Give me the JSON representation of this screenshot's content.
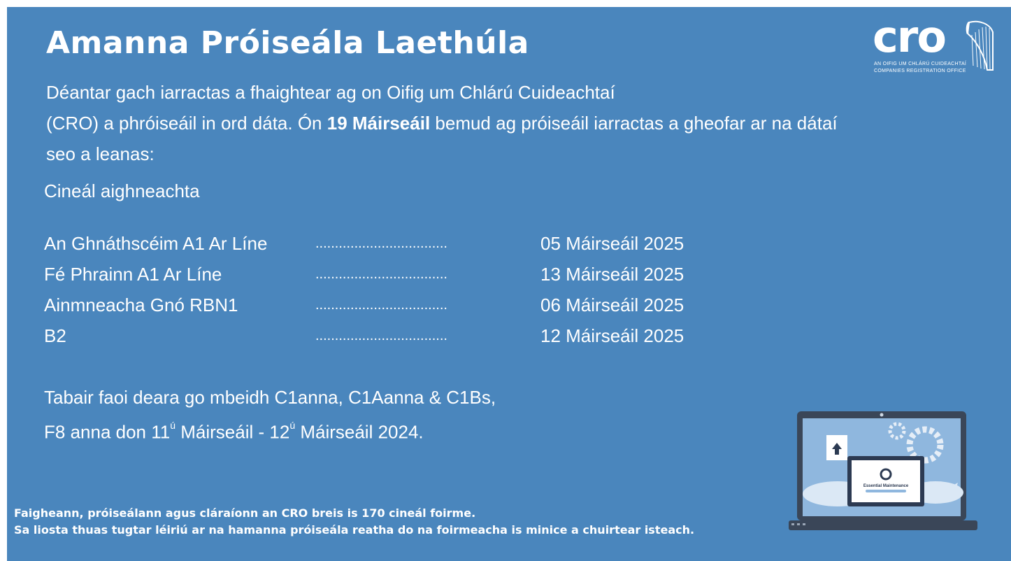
{
  "title": "Amanna Próiseála Laethúla",
  "intro": {
    "text1": "Déantar gach iarractas a fhaightear ag on Oifig um Chlárú Cuideachtaí",
    "text2_pre": "(CRO) a phróiseáil in ord dáta. Ón ",
    "text2_bold": "19 Máirseáil",
    "text2_post": " bemud ag próiseáil iarractas a gheofar ar na dátaí",
    "text3": "seo a leanas:"
  },
  "type_heading": "Cineál aighneachta",
  "rows": [
    {
      "name": "An Ghnáthscéim A1 Ar Líne",
      "dots": "..................................",
      "date": "05 Máirseáil 2025"
    },
    {
      "name": "Fé Phrainn A1 Ar Líne",
      "dots": "..................................",
      "date": "13 Máirseáil 2025"
    },
    {
      "name": "Ainmneacha Gnó RBN1",
      "dots": "..................................",
      "date": "06 Máirseáil 2025"
    },
    {
      "name": "B2",
      "dots": "..................................",
      "date": "12 Máirseáil 2025"
    }
  ],
  "note": {
    "line1": "Tabair faoi deara go mbeidh C1anna, C1Aanna & C1Bs,",
    "line2_a": "F8 anna don 11",
    "sup1": "ú",
    "line2_b": " Máirseáil - 12",
    "sup2": "ú",
    "line2_c": " Máirseáil 2024."
  },
  "footer": {
    "line1": "Faigheann, próiseálann agus cláraíonn an CRO breis is 170 cineál foirme.",
    "line2": "Sa liosta thuas tugtar léiriú ar na hamanna próiseála reatha do na foirmeacha is minice a chuirtear isteach."
  },
  "logo": {
    "mark": "cro",
    "sub1": "AN OIFIG UM CHLÁRÚ CUIDEACHTAÍ",
    "sub2": "COMPANIES REGISTRATION OFFICE"
  },
  "laptop_screen": {
    "label": "Essential Maintenance"
  },
  "colors": {
    "background": "#4a86bd",
    "text": "#ffffff",
    "laptop_body": "#3a4658"
  }
}
